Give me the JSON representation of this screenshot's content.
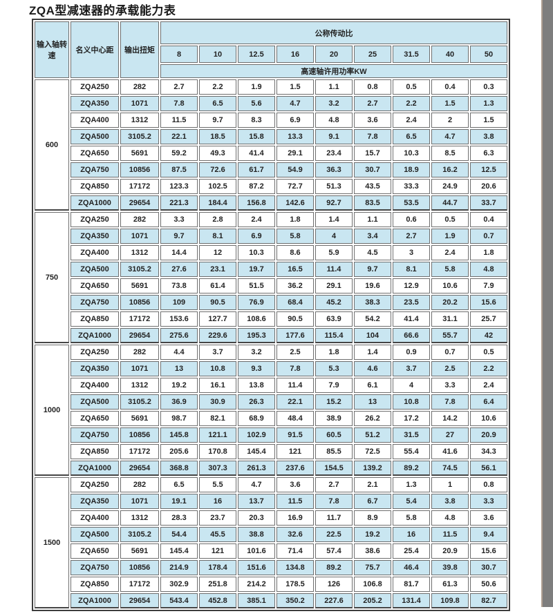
{
  "title": "ZQA型减速器的承载能力表",
  "colors": {
    "cell_blue": "#c9e6f1",
    "border_gray": "#6d6d6d",
    "outer_border": "#3d3d3d",
    "edge_gray": "#7e7e7e"
  },
  "table": {
    "header": {
      "col_speed": "输入轴转速",
      "col_center": "名义中心距",
      "col_torque": "输出扭矩",
      "ratio_group": "公称传动比",
      "ratios": [
        "8",
        "10",
        "12.5",
        "16",
        "20",
        "25",
        "31.5",
        "40",
        "50"
      ],
      "power_label": "高速轴许用功率KW"
    },
    "groups": [
      {
        "speed": "600",
        "rows": [
          {
            "model": "ZQA250",
            "torque": "282",
            "values": [
              "2.7",
              "2.2",
              "1.9",
              "1.5",
              "1.1",
              "0.8",
              "0.5",
              "0.4",
              "0.3"
            ]
          },
          {
            "model": "ZQA350",
            "torque": "1071",
            "values": [
              "7.8",
              "6.5",
              "5.6",
              "4.7",
              "3.2",
              "2.7",
              "2.2",
              "1.5",
              "1.3"
            ]
          },
          {
            "model": "ZQA400",
            "torque": "1312",
            "values": [
              "11.5",
              "9.7",
              "8.3",
              "6.9",
              "4.8",
              "3.6",
              "2.4",
              "2",
              "1.5"
            ]
          },
          {
            "model": "ZQA500",
            "torque": "3105.2",
            "values": [
              "22.1",
              "18.5",
              "15.8",
              "13.3",
              "9.1",
              "7.8",
              "6.5",
              "4.7",
              "3.8"
            ]
          },
          {
            "model": "ZQA650",
            "torque": "5691",
            "values": [
              "59.2",
              "49.3",
              "41.4",
              "29.1",
              "23.4",
              "15.7",
              "10.3",
              "8.5",
              "6.3"
            ]
          },
          {
            "model": "ZQA750",
            "torque": "10856",
            "values": [
              "87.5",
              "72.6",
              "61.7",
              "54.9",
              "36.3",
              "30.7",
              "18.9",
              "16.2",
              "12.5"
            ]
          },
          {
            "model": "ZQA850",
            "torque": "17172",
            "values": [
              "123.3",
              "102.5",
              "87.2",
              "72.7",
              "51.3",
              "43.5",
              "33.3",
              "24.9",
              "20.6"
            ]
          },
          {
            "model": "ZQA1000",
            "torque": "29654",
            "values": [
              "221.3",
              "184.4",
              "156.8",
              "142.6",
              "92.7",
              "83.5",
              "53.5",
              "44.7",
              "33.7"
            ]
          }
        ]
      },
      {
        "speed": "750",
        "rows": [
          {
            "model": "ZQA250",
            "torque": "282",
            "values": [
              "3.3",
              "2.8",
              "2.4",
              "1.8",
              "1.4",
              "1.1",
              "0.6",
              "0.5",
              "0.4"
            ]
          },
          {
            "model": "ZQA350",
            "torque": "1071",
            "values": [
              "9.7",
              "8.1",
              "6.9",
              "5.8",
              "4",
              "3.4",
              "2.7",
              "1.9",
              "0.7"
            ]
          },
          {
            "model": "ZQA400",
            "torque": "1312",
            "values": [
              "14.4",
              "12",
              "10.3",
              "8.6",
              "5.9",
              "4.5",
              "3",
              "2.4",
              "1.8"
            ]
          },
          {
            "model": "ZQA500",
            "torque": "3105.2",
            "values": [
              "27.6",
              "23.1",
              "19.7",
              "16.5",
              "11.4",
              "9.7",
              "8.1",
              "5.8",
              "4.8"
            ]
          },
          {
            "model": "ZQA650",
            "torque": "5691",
            "values": [
              "73.8",
              "61.4",
              "51.5",
              "36.2",
              "29.1",
              "19.6",
              "12.9",
              "10.6",
              "7.9"
            ]
          },
          {
            "model": "ZQA750",
            "torque": "10856",
            "values": [
              "109",
              "90.5",
              "76.9",
              "68.4",
              "45.2",
              "38.3",
              "23.5",
              "20.2",
              "15.6"
            ]
          },
          {
            "model": "ZQA850",
            "torque": "17172",
            "values": [
              "153.6",
              "127.7",
              "108.6",
              "90.5",
              "63.9",
              "54.2",
              "41.4",
              "31.1",
              "25.7"
            ]
          },
          {
            "model": "ZQA1000",
            "torque": "29654",
            "values": [
              "275.6",
              "229.6",
              "195.3",
              "177.6",
              "115.4",
              "104",
              "66.6",
              "55.7",
              "42"
            ]
          }
        ]
      },
      {
        "speed": "1000",
        "rows": [
          {
            "model": "ZQA250",
            "torque": "282",
            "values": [
              "4.4",
              "3.7",
              "3.2",
              "2.5",
              "1.8",
              "1.4",
              "0.9",
              "0.7",
              "0.5"
            ]
          },
          {
            "model": "ZQA350",
            "torque": "1071",
            "values": [
              "13",
              "10.8",
              "9.3",
              "7.8",
              "5.3",
              "4.6",
              "3.7",
              "2.5",
              "2.2"
            ]
          },
          {
            "model": "ZQA400",
            "torque": "1312",
            "values": [
              "19.2",
              "16.1",
              "13.8",
              "11.4",
              "7.9",
              "6.1",
              "4",
              "3.3",
              "2.4"
            ]
          },
          {
            "model": "ZQA500",
            "torque": "3105.2",
            "values": [
              "36.9",
              "30.9",
              "26.3",
              "22.1",
              "15.2",
              "13",
              "10.8",
              "7.8",
              "6.4"
            ]
          },
          {
            "model": "ZQA650",
            "torque": "5691",
            "values": [
              "98.7",
              "82.1",
              "68.9",
              "48.4",
              "38.9",
              "26.2",
              "17.2",
              "14.2",
              "10.6"
            ]
          },
          {
            "model": "ZQA750",
            "torque": "10856",
            "values": [
              "145.8",
              "121.1",
              "102.9",
              "91.5",
              "60.5",
              "51.2",
              "31.5",
              "27",
              "20.9"
            ]
          },
          {
            "model": "ZQA850",
            "torque": "17172",
            "values": [
              "205.6",
              "170.8",
              "145.4",
              "121",
              "85.5",
              "72.5",
              "55.4",
              "41.6",
              "34.3"
            ]
          },
          {
            "model": "ZQA1000",
            "torque": "29654",
            "values": [
              "368.8",
              "307.3",
              "261.3",
              "237.6",
              "154.5",
              "139.2",
              "89.2",
              "74.5",
              "56.1"
            ]
          }
        ]
      },
      {
        "speed": "1500",
        "rows": [
          {
            "model": "ZQA250",
            "torque": "282",
            "values": [
              "6.5",
              "5.5",
              "4.7",
              "3.6",
              "2.7",
              "2.1",
              "1.3",
              "1",
              "0.8"
            ]
          },
          {
            "model": "ZQA350",
            "torque": "1071",
            "values": [
              "19.1",
              "16",
              "13.7",
              "11.5",
              "7.8",
              "6.7",
              "5.4",
              "3.8",
              "3.3"
            ]
          },
          {
            "model": "ZQA400",
            "torque": "1312",
            "values": [
              "28.3",
              "23.7",
              "20.3",
              "16.9",
              "11.7",
              "8.9",
              "5.8",
              "4.8",
              "3.6"
            ]
          },
          {
            "model": "ZQA500",
            "torque": "3105.2",
            "values": [
              "54.4",
              "45.5",
              "38.8",
              "32.6",
              "22.5",
              "19.2",
              "16",
              "11.5",
              "9.4"
            ]
          },
          {
            "model": "ZQA650",
            "torque": "5691",
            "values": [
              "145.4",
              "121",
              "101.6",
              "71.4",
              "57.4",
              "38.6",
              "25.4",
              "20.9",
              "15.6"
            ]
          },
          {
            "model": "ZQA750",
            "torque": "10856",
            "values": [
              "214.9",
              "178.4",
              "151.6",
              "134.8",
              "89.2",
              "75.7",
              "46.4",
              "39.8",
              "30.7"
            ]
          },
          {
            "model": "ZQA850",
            "torque": "17172",
            "values": [
              "302.9",
              "251.8",
              "214.2",
              "178.5",
              "126",
              "106.8",
              "81.7",
              "61.3",
              "50.6"
            ]
          },
          {
            "model": "ZQA1000",
            "torque": "29654",
            "values": [
              "543.4",
              "452.8",
              "385.1",
              "350.2",
              "227.6",
              "205.2",
              "131.4",
              "109.8",
              "82.7"
            ]
          }
        ]
      }
    ]
  }
}
